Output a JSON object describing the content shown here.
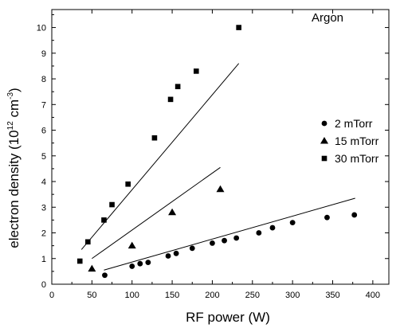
{
  "chart_data": {
    "type": "scatter",
    "title": "",
    "annotation": "Argon",
    "xlabel": "RF power (W)",
    "ylabel": "electron density (10^12 cm^-3)",
    "ylabel_parts": {
      "base": "electron density (10",
      "exp1": "12",
      "mid": " cm",
      "exp2": "-3",
      "end": ")"
    },
    "xlim": [
      0,
      420
    ],
    "ylim": [
      0,
      10.7
    ],
    "xticks": [
      0,
      50,
      100,
      150,
      200,
      250,
      300,
      350,
      400
    ],
    "yticks": [
      0,
      1,
      2,
      3,
      4,
      5,
      6,
      7,
      8,
      9,
      10
    ],
    "legend_position": "right",
    "grid": false,
    "series": [
      {
        "name": "2 mTorr",
        "marker": "circle",
        "points": [
          [
            66,
            0.35
          ],
          [
            100,
            0.7
          ],
          [
            110,
            0.8
          ],
          [
            120,
            0.85
          ],
          [
            145,
            1.1
          ],
          [
            155,
            1.2
          ],
          [
            175,
            1.4
          ],
          [
            200,
            1.6
          ],
          [
            215,
            1.7
          ],
          [
            230,
            1.8
          ],
          [
            258,
            2.0
          ],
          [
            275,
            2.2
          ],
          [
            300,
            2.4
          ],
          [
            343,
            2.6
          ],
          [
            377,
            2.7
          ]
        ],
        "fit": [
          [
            65,
            0.55
          ],
          [
            378,
            3.35
          ]
        ]
      },
      {
        "name": "15 mTorr",
        "marker": "triangle",
        "points": [
          [
            50,
            0.6
          ],
          [
            100,
            1.5
          ],
          [
            150,
            2.8
          ],
          [
            210,
            3.7
          ]
        ],
        "fit": [
          [
            50,
            1.0
          ],
          [
            210,
            4.55
          ]
        ]
      },
      {
        "name": "30 mTorr",
        "marker": "square",
        "points": [
          [
            35,
            0.9
          ],
          [
            45,
            1.65
          ],
          [
            65,
            2.5
          ],
          [
            75,
            3.1
          ],
          [
            95,
            3.9
          ],
          [
            128,
            5.7
          ],
          [
            148,
            7.2
          ],
          [
            157,
            7.7
          ],
          [
            180,
            8.3
          ],
          [
            233,
            10.0
          ]
        ],
        "fit": [
          [
            37,
            1.35
          ],
          [
            233,
            8.6
          ]
        ]
      }
    ]
  }
}
